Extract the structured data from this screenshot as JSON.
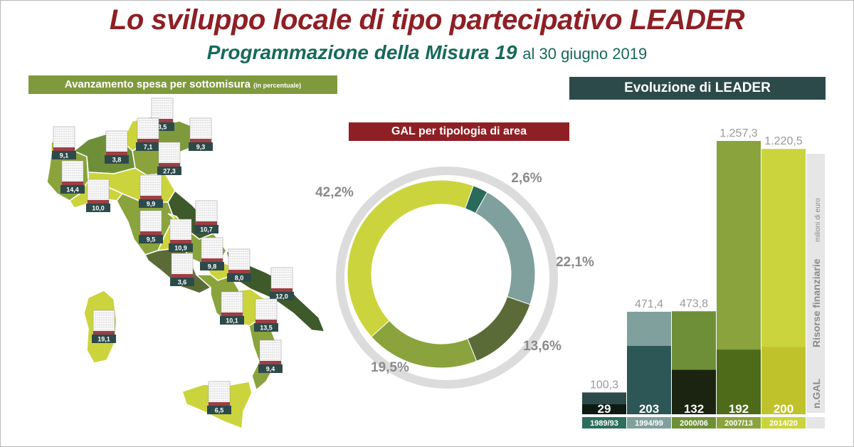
{
  "header": {
    "title": "Lo sviluppo locale di tipo partecipativo LEADER",
    "subtitle_main": "Programmazione della Misura 19",
    "subtitle_date": "al 30 giugno 2019"
  },
  "map_section": {
    "title": "Avanzamento spesa per sottomisura",
    "title_note": "(in percentuale)"
  },
  "gal_section": {
    "title": "GAL per tipologia di area"
  },
  "evo_section": {
    "title": "Evoluzione di LEADER",
    "side_label_main": "Risorse finanziarie",
    "side_label_unit": "milioni di euro",
    "side_label_gal": "n.GAL"
  },
  "colors": {
    "title_red": "#8e2025",
    "subtitle_teal": "#17695b",
    "map_green": "#7f9a3d",
    "evo_dark": "#2d4a4a"
  },
  "chart_data": [
    {
      "type": "map",
      "values": [
        {
          "value": "3,5"
        },
        {
          "value": "9,1"
        },
        {
          "value": "3,8"
        },
        {
          "value": "7,1"
        },
        {
          "value": "9,3"
        },
        {
          "value": "27,3"
        },
        {
          "value": "14,4"
        },
        {
          "value": "10,0"
        },
        {
          "value": "9,9"
        },
        {
          "value": "10,7"
        },
        {
          "value": "9,5"
        },
        {
          "value": "10,9"
        },
        {
          "value": "9,8"
        },
        {
          "value": "3,6"
        },
        {
          "value": "8,0"
        },
        {
          "value": "12,0"
        },
        {
          "value": "19,1"
        },
        {
          "value": "10,1"
        },
        {
          "value": "13,5"
        },
        {
          "value": "9,4"
        },
        {
          "value": "6,5"
        }
      ]
    },
    {
      "type": "pie",
      "slices": [
        {
          "label": "2,6%",
          "value": 2.6,
          "color": "#2a6a5a"
        },
        {
          "label": "22,1%",
          "value": 22.1,
          "color": "#7fa09c"
        },
        {
          "label": "13,6%",
          "value": 13.6,
          "color": "#5a6b38"
        },
        {
          "label": "19,5%",
          "value": 19.5,
          "color": "#8aa33d"
        },
        {
          "label": "42,2%",
          "value": 42.2,
          "color": "#cbd43c"
        }
      ]
    },
    {
      "type": "bar",
      "categories": [
        "1989/93",
        "1994/99",
        "2000/06",
        "2007/13",
        "2014/20"
      ],
      "series": [
        {
          "values": [
            100.3,
            471.4,
            473.8,
            1257.3,
            1220.5
          ],
          "labels": [
            "100,3",
            "471,4",
            "473,8",
            "1.257,3",
            "1.220,5"
          ]
        },
        {
          "values": [
            29,
            203,
            132,
            192,
            200
          ],
          "labels": [
            "29",
            "203",
            "132",
            "192",
            "200"
          ]
        }
      ],
      "colors_top": [
        "#2d4a4a",
        "#7fa09c",
        "#6e8f38",
        "#8aa33d",
        "#cbd43c"
      ],
      "colors_bottom": [
        "#0d1a12",
        "#2d5656",
        "#1a2410",
        "#4e6b1a",
        "#c0c22c"
      ],
      "colors_period": [
        "#2d6e5c",
        "#7fa09c",
        "#6e8f38",
        "#8aa33d",
        "#cbd43c"
      ]
    }
  ]
}
